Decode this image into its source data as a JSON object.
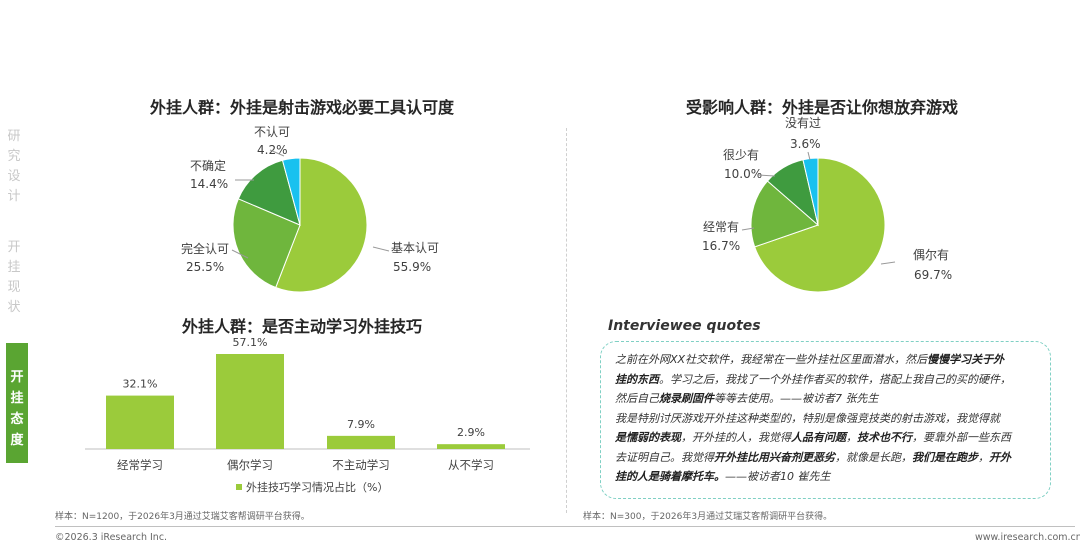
{
  "nav": {
    "item1": [
      "研",
      "究",
      "设",
      "计"
    ],
    "item2": [
      "开",
      "挂",
      "现",
      "状"
    ],
    "item3": [
      "开",
      "挂",
      "态",
      "度"
    ]
  },
  "colors": {
    "green_main": "#9bcb3b",
    "green_mid": "#6fb63d",
    "green_dark": "#3f9b3f",
    "cyan": "#19c1ef",
    "bar": "#9bcb3b",
    "nav_active": "#5aa532"
  },
  "quotes": {
    "title": "Interviewee quotes",
    "lines": [
      [
        {
          "t": "之前在外网XX社交软件，我经常在一些外挂社区里面潜水，然后"
        },
        {
          "t": "慢慢学习关于外",
          "b": true
        }
      ],
      [
        {
          "t": "挂的东西",
          "b": true
        },
        {
          "t": "。学习之后，我找了一个外挂作者买的软件，搭配上我自己的买的硬件，"
        }
      ],
      [
        {
          "t": "然后自己"
        },
        {
          "t": "烧录刷固件",
          "b": true
        },
        {
          "t": "等等去使用。——被访者7 张先生"
        }
      ],
      [
        {
          "t": "我是特别讨厌游戏开外挂这种类型的，特别是像强竞技类的射击游戏，我觉得就"
        }
      ],
      [
        {
          "t": "是懦弱的表现",
          "b": true
        },
        {
          "t": "，开外挂的人，我觉得"
        },
        {
          "t": "人品有问题",
          "b": true
        },
        {
          "t": "，"
        },
        {
          "t": "技术也不行",
          "b": true
        },
        {
          "t": "，要靠外部一些东西"
        }
      ],
      [
        {
          "t": "去证明自己。我觉得"
        },
        {
          "t": "开外挂比用兴奋剂更恶劣",
          "b": true
        },
        {
          "t": "，就像是长跑，"
        },
        {
          "t": "我们是在跑步",
          "b": true
        },
        {
          "t": "，"
        },
        {
          "t": "开外",
          "b": true
        }
      ],
      [
        {
          "t": "挂的人是骑着摩托车。",
          "b": true
        },
        {
          "t": "——被访者10 崔先生"
        }
      ]
    ]
  },
  "footer": {
    "sample_left": "样本：N=1200，于2026年3月通过艾瑞艾客帮调研平台获得。",
    "sample_right": "样本：N=300，于2026年3月通过艾瑞艾客帮调研平台获得。",
    "copyright": "©2026.3 iResearch Inc.",
    "website": "www.iresearch.com.cn"
  },
  "chart_data": [
    {
      "type": "pie",
      "title": "外挂人群：外挂是射击游戏必要工具认可度",
      "slices": [
        {
          "label": "基本认可",
          "value": 55.9,
          "display": "55.9%",
          "color": "#9bcb3b"
        },
        {
          "label": "完全认可",
          "value": 25.5,
          "display": "25.5%",
          "color": "#6fb63d"
        },
        {
          "label": "不确定",
          "value": 14.4,
          "display": "14.4%",
          "color": "#3f9b3f"
        },
        {
          "label": "不认可",
          "value": 4.2,
          "display": "4.2%",
          "color": "#19c1ef"
        }
      ]
    },
    {
      "type": "pie",
      "title": "受影响人群：外挂是否让你想放弃游戏",
      "slices": [
        {
          "label": "偶尔有",
          "value": 69.7,
          "display": "69.7%",
          "color": "#9bcb3b"
        },
        {
          "label": "经常有",
          "value": 16.7,
          "display": "16.7%",
          "color": "#6fb63d"
        },
        {
          "label": "很少有",
          "value": 10.0,
          "display": "10.0%",
          "color": "#3f9b3f"
        },
        {
          "label": "没有过",
          "value": 3.6,
          "display": "3.6%",
          "color": "#19c1ef"
        }
      ]
    },
    {
      "type": "bar",
      "title": "外挂人群：是否主动学习外挂技巧",
      "categories": [
        "经常学习",
        "偶尔学习",
        "不主动学习",
        "从不学习"
      ],
      "values": [
        32.1,
        57.1,
        7.9,
        2.9
      ],
      "value_labels": [
        "32.1%",
        "57.1%",
        "7.9%",
        "2.9%"
      ],
      "legend": "外挂技巧学习情况占比（%）",
      "color": "#9bcb3b",
      "ylim": [
        0,
        57.1
      ]
    }
  ]
}
